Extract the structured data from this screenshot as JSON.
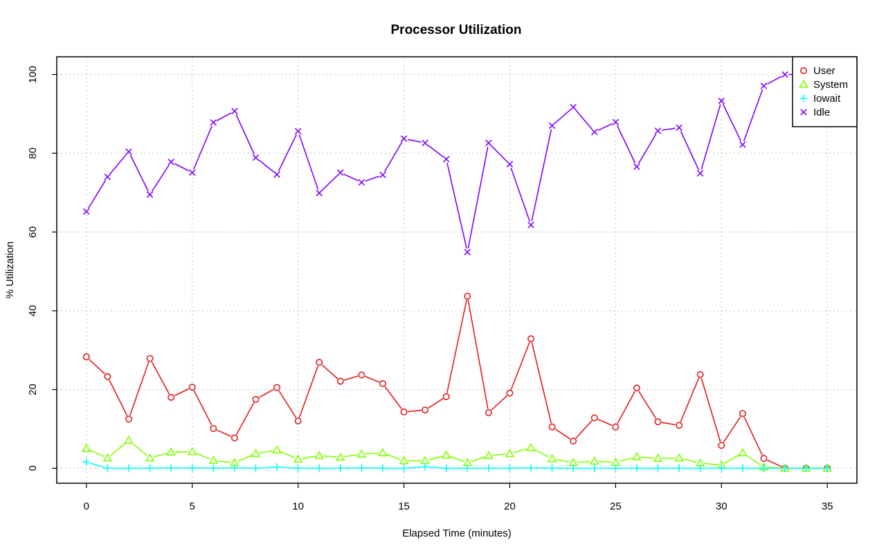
{
  "chart_data": {
    "type": "line",
    "title": "Processor Utilization",
    "xlabel": "Elapsed Time (minutes)",
    "ylabel": "% Utilization",
    "xlim": [
      -1.4,
      36.4
    ],
    "ylim": [
      -3.8,
      104.5
    ],
    "x_ticks": [
      0,
      5,
      10,
      15,
      20,
      25,
      30,
      35
    ],
    "y_ticks": [
      0,
      20,
      40,
      60,
      80,
      100
    ],
    "grid": true,
    "legend_position": "top-right",
    "x": [
      0,
      1,
      2,
      3,
      4,
      5,
      6,
      7,
      8,
      9,
      10,
      11,
      12,
      13,
      14,
      15,
      16,
      17,
      18,
      19,
      20,
      21,
      22,
      23,
      24,
      25,
      26,
      27,
      28,
      29,
      30,
      31,
      32,
      33,
      34,
      35
    ],
    "series": [
      {
        "name": "User",
        "color": "#e41a1c",
        "marker": "circle",
        "values": [
          28.3,
          23.3,
          12.5,
          27.9,
          18.0,
          20.6,
          10.1,
          7.7,
          17.5,
          20.5,
          12.0,
          26.9,
          22.1,
          23.7,
          21.5,
          14.3,
          14.8,
          18.2,
          43.7,
          14.1,
          19.1,
          32.9,
          10.5,
          6.9,
          12.8,
          10.5,
          20.4,
          11.8,
          10.9,
          23.8,
          5.8,
          13.9,
          2.5,
          0.0,
          0.0,
          0.0
        ]
      },
      {
        "name": "System",
        "color": "#80ff00",
        "marker": "triangle",
        "values": [
          5.0,
          2.6,
          7.1,
          2.6,
          4.1,
          4.2,
          2.0,
          1.4,
          3.7,
          4.6,
          2.3,
          3.2,
          2.8,
          3.6,
          3.9,
          1.9,
          1.9,
          3.3,
          1.4,
          3.2,
          3.7,
          5.2,
          2.4,
          1.4,
          1.8,
          1.5,
          2.9,
          2.5,
          2.6,
          1.3,
          0.8,
          3.9,
          0.3,
          0.0,
          0.0,
          0.0
        ]
      },
      {
        "name": "Iowait",
        "color": "#00ffff",
        "marker": "plus",
        "values": [
          1.6,
          0.0,
          0.0,
          0.0,
          0.1,
          0.1,
          0.0,
          0.1,
          0.0,
          0.3,
          0.0,
          0.0,
          0.0,
          0.1,
          0.0,
          0.0,
          0.4,
          0.0,
          0.0,
          0.0,
          0.0,
          0.1,
          0.0,
          0.0,
          0.0,
          0.0,
          0.0,
          0.0,
          0.0,
          0.0,
          0.0,
          0.0,
          0.0,
          0.0,
          0.0,
          0.0
        ]
      },
      {
        "name": "Idle",
        "color": "#8000ff",
        "marker": "cross",
        "values": [
          65.2,
          74.0,
          80.4,
          69.5,
          77.8,
          75.1,
          87.8,
          90.7,
          78.9,
          74.6,
          85.6,
          69.9,
          75.1,
          72.6,
          74.5,
          83.7,
          82.6,
          78.5,
          54.9,
          82.6,
          77.2,
          61.8,
          87.0,
          91.7,
          85.4,
          87.9,
          76.6,
          85.7,
          86.5,
          74.9,
          93.3,
          82.2,
          97.1,
          100.0,
          100.0,
          100.0
        ]
      }
    ]
  }
}
